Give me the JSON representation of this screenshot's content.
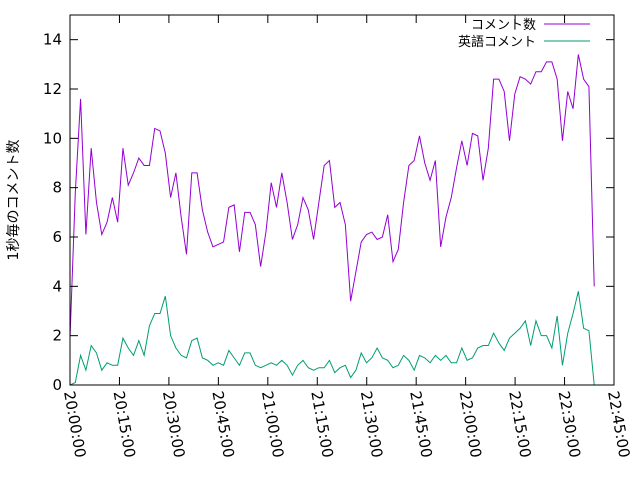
{
  "chart_data": {
    "type": "line",
    "title": "",
    "xlabel": "",
    "ylabel": "1秒毎のコメント数",
    "ylim": [
      0,
      15
    ],
    "yticks": [
      0,
      2,
      4,
      6,
      8,
      10,
      12,
      14
    ],
    "xlim_labels": [
      "20:00:00",
      "22:45:00"
    ],
    "xtick_labels": [
      "20:00:00",
      "20:15:00",
      "20:30:00",
      "20:45:00",
      "21:00:00",
      "21:15:00",
      "21:30:00",
      "21:45:00",
      "22:00:00",
      "22:15:00",
      "22:30:00",
      "22:45:00"
    ],
    "grid": false,
    "legend_position": "top-right",
    "series": [
      {
        "name": "コメント数",
        "color": "#9400d3",
        "values": [
          1.9,
          7.8,
          11.6,
          6.1,
          9.6,
          7.4,
          6.1,
          6.6,
          7.6,
          6.6,
          9.6,
          8.1,
          8.6,
          9.2,
          8.9,
          8.9,
          10.4,
          10.3,
          9.4,
          7.6,
          8.6,
          6.8,
          5.3,
          8.6,
          8.6,
          7.1,
          6.2,
          5.6,
          5.7,
          5.8,
          7.2,
          7.3,
          5.4,
          7.0,
          7.0,
          6.5,
          4.8,
          6.2,
          8.2,
          7.2,
          8.6,
          7.4,
          5.9,
          6.5,
          7.6,
          7.1,
          5.9,
          7.4,
          8.9,
          9.1,
          7.2,
          7.4,
          6.5,
          3.4,
          4.6,
          5.8,
          6.1,
          6.2,
          5.9,
          6.0,
          6.9,
          5.0,
          5.5,
          7.4,
          8.9,
          9.1,
          10.1,
          9.0,
          8.3,
          9.1,
          5.6,
          6.8,
          7.6,
          8.8,
          9.9,
          8.9,
          10.2,
          10.1,
          8.3,
          9.6,
          12.4,
          12.4,
          11.9,
          9.9,
          11.8,
          12.5,
          12.4,
          12.2,
          12.7,
          12.7,
          13.1,
          13.1,
          12.4,
          9.9,
          11.9,
          11.2,
          13.4,
          12.4,
          12.1,
          4.0
        ]
      },
      {
        "name": "英語コメント",
        "color": "#009e73",
        "values": [
          0.0,
          0.1,
          1.2,
          0.6,
          1.6,
          1.3,
          0.6,
          0.9,
          0.8,
          0.8,
          1.9,
          1.5,
          1.2,
          1.8,
          1.2,
          2.4,
          2.9,
          2.9,
          3.6,
          2.0,
          1.5,
          1.2,
          1.1,
          1.8,
          1.9,
          1.1,
          1.0,
          0.8,
          0.9,
          0.8,
          1.4,
          1.1,
          0.8,
          1.3,
          1.3,
          0.8,
          0.7,
          0.8,
          0.9,
          0.8,
          1.0,
          0.8,
          0.4,
          0.8,
          1.0,
          0.7,
          0.6,
          0.7,
          0.7,
          1.0,
          0.5,
          0.7,
          0.8,
          0.3,
          0.6,
          1.3,
          0.9,
          1.1,
          1.5,
          1.1,
          1.0,
          0.7,
          0.8,
          1.2,
          1.0,
          0.6,
          1.2,
          1.1,
          0.9,
          1.2,
          1.0,
          1.2,
          0.9,
          0.9,
          1.5,
          1.0,
          1.1,
          1.5,
          1.6,
          1.6,
          2.1,
          1.7,
          1.4,
          1.9,
          2.1,
          2.3,
          2.6,
          1.6,
          2.6,
          2.0,
          2.0,
          1.5,
          2.8,
          0.8,
          2.1,
          2.9,
          3.8,
          2.3,
          2.2,
          0.0
        ]
      }
    ]
  }
}
